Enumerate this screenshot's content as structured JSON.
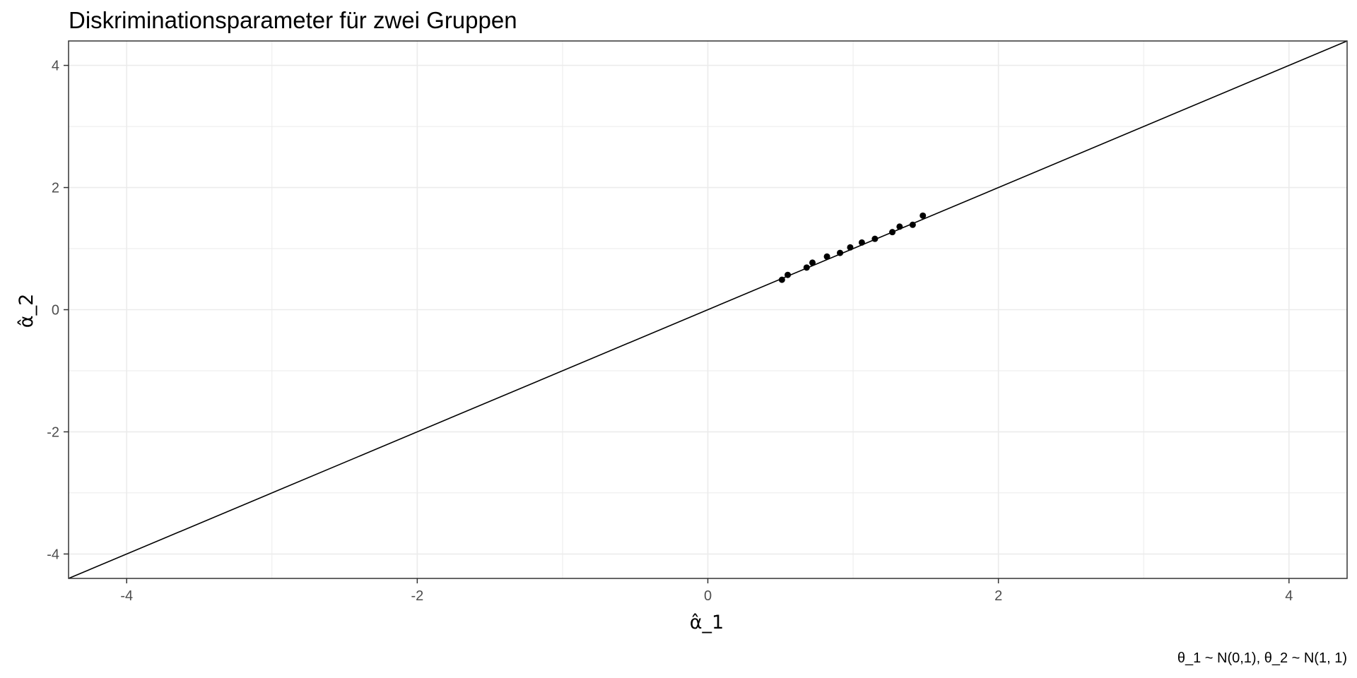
{
  "chart_data": {
    "type": "scatter",
    "title": "Diskriminationsparameter für zwei Gruppen",
    "xlabel": "α̂_1",
    "ylabel": "α̂_2",
    "caption": "θ_1 ~ N(0,1), θ_2 ~ N(1, 1)",
    "xlim": [
      -4.4,
      4.4
    ],
    "ylim": [
      -4.4,
      4.4
    ],
    "x_ticks": [
      -4,
      -2,
      0,
      2,
      4
    ],
    "y_ticks": [
      -4,
      -2,
      0,
      2,
      4
    ],
    "x_tick_labels": [
      "-4",
      "-2",
      "0",
      "2",
      "4"
    ],
    "y_tick_labels": [
      "-4",
      "-2",
      "0",
      "2",
      "4"
    ],
    "grid": true,
    "reference_line": {
      "intercept": 0,
      "slope": 1
    },
    "points": [
      {
        "x": 0.51,
        "y": 0.49
      },
      {
        "x": 0.55,
        "y": 0.57
      },
      {
        "x": 0.68,
        "y": 0.69
      },
      {
        "x": 0.72,
        "y": 0.77
      },
      {
        "x": 0.82,
        "y": 0.87
      },
      {
        "x": 0.91,
        "y": 0.93
      },
      {
        "x": 0.98,
        "y": 1.02
      },
      {
        "x": 1.06,
        "y": 1.1
      },
      {
        "x": 1.15,
        "y": 1.16
      },
      {
        "x": 1.27,
        "y": 1.27
      },
      {
        "x": 1.32,
        "y": 1.36
      },
      {
        "x": 1.41,
        "y": 1.39
      },
      {
        "x": 1.48,
        "y": 1.54
      }
    ],
    "colors": {
      "points": "#000000",
      "line": "#000000",
      "grid": "#ebebeb",
      "border": "#333333"
    }
  }
}
